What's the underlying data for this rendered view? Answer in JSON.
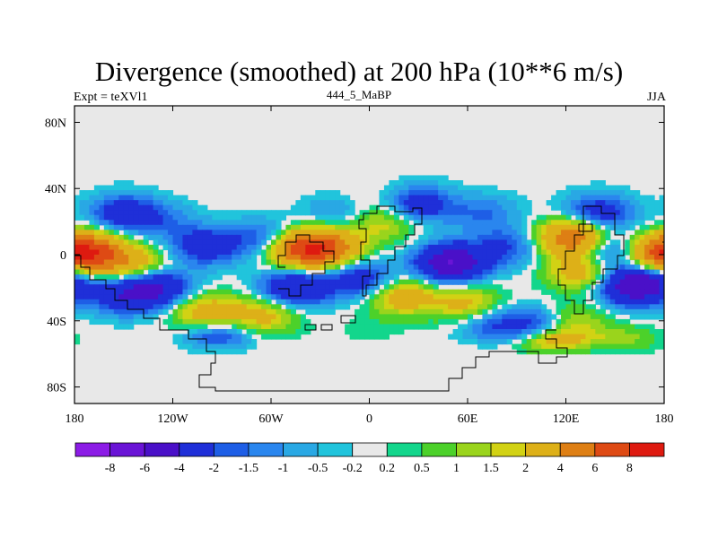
{
  "title": "Divergence (smoothed) at 200 hPa (10**6 m/s)",
  "subtitle_left": "Expt = teXVl1",
  "subtitle_center": "444_5_MaBP",
  "subtitle_right": "JJA",
  "y_tick_labels": [
    "80N",
    "40N",
    "0",
    "40S",
    "80S"
  ],
  "x_tick_labels": [
    "180",
    "120W",
    "60W",
    "0",
    "60E",
    "120E",
    "180"
  ],
  "colorbar": {
    "labels": [
      "-8",
      "-6",
      "-4",
      "-2",
      "-1.5",
      "-1",
      "-0.5",
      "-0.2",
      "0.2",
      "0.5",
      "1",
      "1.5",
      "2",
      "4",
      "6",
      "8"
    ],
    "colors": [
      "#8c1ce6",
      "#6a14d6",
      "#4a10c8",
      "#1f2fd8",
      "#1e5ee6",
      "#2a86ee",
      "#29a8e4",
      "#21c4dc",
      "#e8e8e8",
      "#13d68c",
      "#4cd12a",
      "#9ad41c",
      "#d2d214",
      "#ddb018",
      "#de7f14",
      "#de4a14",
      "#de1a10"
    ]
  },
  "chart_data": {
    "type": "heatmap",
    "title": "Divergence (smoothed) at 200 hPa (10**6 m/s)",
    "season": "JJA",
    "xlim": [
      -180,
      180
    ],
    "ylim": [
      -90,
      90
    ],
    "x_ticks": [
      -180,
      -120,
      -60,
      0,
      60,
      120,
      180
    ],
    "y_ticks": [
      80,
      40,
      0,
      -40,
      -80
    ],
    "levels": [
      -8,
      -6,
      -4,
      -2,
      -1.5,
      -1,
      -0.5,
      -0.2,
      0.2,
      0.5,
      1,
      1.5,
      2,
      4,
      6,
      8
    ],
    "features": [
      {
        "lon": -170,
        "lat": 2,
        "value": 5
      },
      {
        "lon": -145,
        "lat": -6,
        "value": 3
      },
      {
        "lon": -150,
        "lat": 25,
        "value": -3
      },
      {
        "lon": -125,
        "lat": 20,
        "value": -1.2
      },
      {
        "lon": -130,
        "lat": -20,
        "value": -4
      },
      {
        "lon": -150,
        "lat": -25,
        "value": -3
      },
      {
        "lon": -100,
        "lat": -35,
        "value": 3
      },
      {
        "lon": -65,
        "lat": -37,
        "value": 2.5
      },
      {
        "lon": -92,
        "lat": -50,
        "value": -2.5
      },
      {
        "lon": -100,
        "lat": 5,
        "value": -3
      },
      {
        "lon": -65,
        "lat": 10,
        "value": -2
      },
      {
        "lon": -40,
        "lat": 3,
        "value": 6
      },
      {
        "lon": -25,
        "lat": 5,
        "value": 4
      },
      {
        "lon": -20,
        "lat": 25,
        "value": -1.2
      },
      {
        "lon": 10,
        "lat": 20,
        "value": 2
      },
      {
        "lon": -45,
        "lat": -20,
        "value": -4
      },
      {
        "lon": -5,
        "lat": -15,
        "value": -3
      },
      {
        "lon": 50,
        "lat": -5,
        "value": -6
      },
      {
        "lon": 85,
        "lat": 5,
        "value": -2
      },
      {
        "lon": 30,
        "lat": 30,
        "value": -3
      },
      {
        "lon": 70,
        "lat": 25,
        "value": -1.5
      },
      {
        "lon": 20,
        "lat": -25,
        "value": 3
      },
      {
        "lon": 60,
        "lat": -30,
        "value": 2.5
      },
      {
        "lon": 75,
        "lat": -42,
        "value": -2
      },
      {
        "lon": 105,
        "lat": -43,
        "value": -3
      },
      {
        "lon": 112,
        "lat": -55,
        "value": 4
      },
      {
        "lon": 122,
        "lat": -40,
        "value": 2
      },
      {
        "lon": 130,
        "lat": -10,
        "value": 3
      },
      {
        "lon": 125,
        "lat": 10,
        "value": 6
      },
      {
        "lon": 145,
        "lat": 2,
        "value": -3
      },
      {
        "lon": 140,
        "lat": 25,
        "value": -3
      },
      {
        "lon": 160,
        "lat": -20,
        "value": -4
      },
      {
        "lon": 170,
        "lat": -15,
        "value": -3
      },
      {
        "lon": 178,
        "lat": 0,
        "value": 5
      },
      {
        "lon": 155,
        "lat": -55,
        "value": 1.5
      },
      {
        "lon": 0,
        "lat": -45,
        "value": 0.3
      },
      {
        "lon": 0,
        "lat": 38,
        "value": 0.3
      }
    ]
  }
}
